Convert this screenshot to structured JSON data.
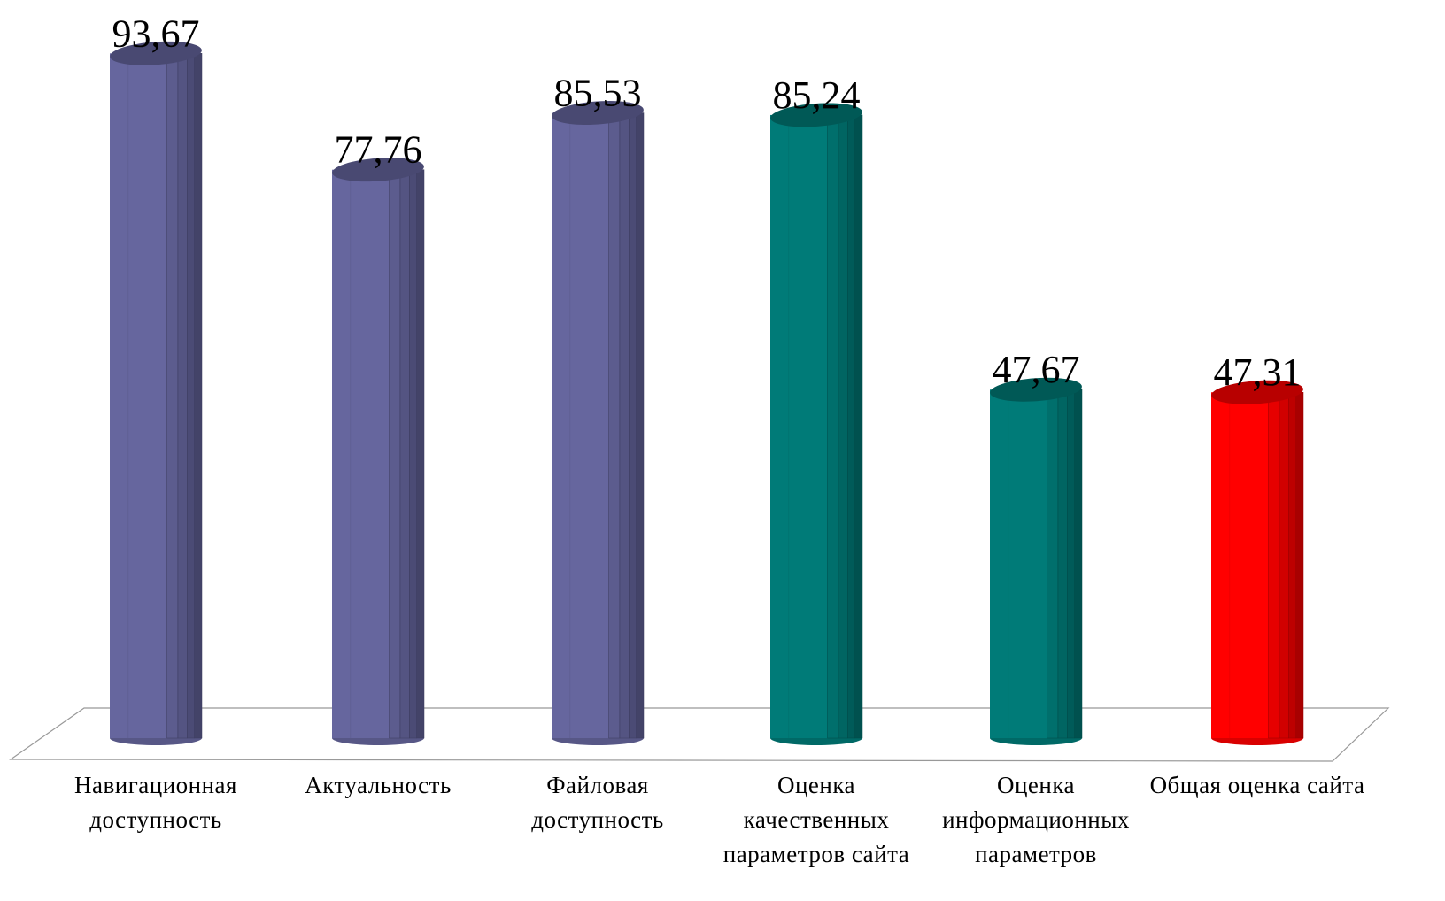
{
  "chart_data": {
    "type": "bar",
    "categories": [
      "Навигационная доступность",
      "Актуальность",
      "Файловая доступность",
      "Оценка качественных параметров сайта",
      "Оценка информационных параметров",
      "Общая оценка сайта"
    ],
    "values": [
      93.67,
      77.76,
      85.53,
      85.24,
      47.67,
      47.31
    ],
    "value_labels": [
      "93,67",
      "77,76",
      "85,53",
      "85,24",
      "47,67",
      "47,31"
    ],
    "colors": [
      "#66669e",
      "#66669e",
      "#66669e",
      "#007b78",
      "#007b78",
      "#ff0000"
    ]
  }
}
